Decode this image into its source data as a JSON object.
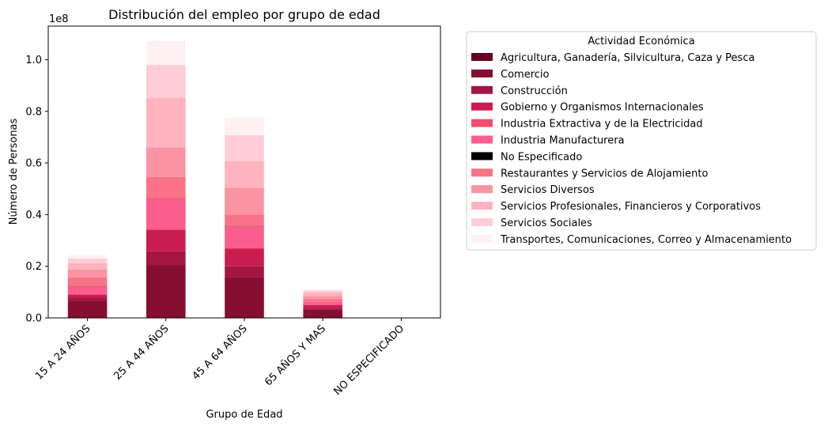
{
  "chart_data": {
    "type": "bar",
    "stacked": true,
    "title": "Distribución del empleo por grupo de edad",
    "xlabel": "Grupo de Edad",
    "ylabel": "Número de Personas",
    "y_offset_label": "1e8",
    "ylim": [
      0,
      1.13
    ],
    "yticks": [
      "0.0",
      "0.2",
      "0.4",
      "0.6",
      "0.8",
      "1.0"
    ],
    "ytick_values": [
      0,
      0.2,
      0.4,
      0.6,
      0.8,
      1.0
    ],
    "grid": false,
    "legend_position": "outside-right",
    "legend_title": "Actividad Económica",
    "categories": [
      "15 A 24 AÑOS",
      "25 A 44 AÑOS",
      "45 A 64 AÑOS",
      "65 AÑOS Y MAS",
      "NO ESPECIFICADO"
    ],
    "series": [
      {
        "name": "Agricultura, Ganadería, Silvicultura, Caza y Pesca",
        "color": "#67001f",
        "values": [
          0.0,
          0.0,
          0.0,
          0.0,
          0.0
        ]
      },
      {
        "name": "Comercio",
        "color": "#850e31",
        "values": [
          0.066,
          0.205,
          0.158,
          0.033,
          0.0
        ]
      },
      {
        "name": "Construcción",
        "color": "#a51543",
        "values": [
          0.012,
          0.053,
          0.042,
          0.006,
          0.0
        ]
      },
      {
        "name": "Gobierno y Organismos Internacionales",
        "color": "#c81d4e",
        "values": [
          0.012,
          0.082,
          0.068,
          0.01,
          0.0
        ]
      },
      {
        "name": "Industria Extractiva y de la Electricidad",
        "color": "#f44d6e",
        "values": [
          0.004,
          0.006,
          0.004,
          0.001,
          0.0
        ]
      },
      {
        "name": "Industria Manufacturera",
        "color": "#fb5e8e",
        "values": [
          0.026,
          0.116,
          0.081,
          0.012,
          0.0
        ]
      },
      {
        "name": "No Especificado",
        "color": "#000000",
        "values": [
          0.0005,
          0.0005,
          0.0005,
          0.0,
          0.0
        ]
      },
      {
        "name": "Restaurantes y Servicios de Alojamiento",
        "color": "#f97286",
        "values": [
          0.036,
          0.083,
          0.047,
          0.011,
          0.0
        ]
      },
      {
        "name": "Servicios Diversos",
        "color": "#fb94a2",
        "values": [
          0.031,
          0.115,
          0.104,
          0.012,
          0.0
        ]
      },
      {
        "name": "Servicios Profesionales, Financieros y Corporativos",
        "color": "#feb3bf",
        "values": [
          0.024,
          0.192,
          0.102,
          0.014,
          0.0
        ]
      },
      {
        "name": "Servicios Sociales",
        "color": "#fecdd7",
        "values": [
          0.019,
          0.127,
          0.101,
          0.007,
          0.0
        ]
      },
      {
        "name": "Transportes, Comunicaciones, Correo y Almacenamiento",
        "color": "#fff0f3",
        "values": [
          0.013,
          0.093,
          0.068,
          0.005,
          0.0
        ]
      }
    ]
  }
}
